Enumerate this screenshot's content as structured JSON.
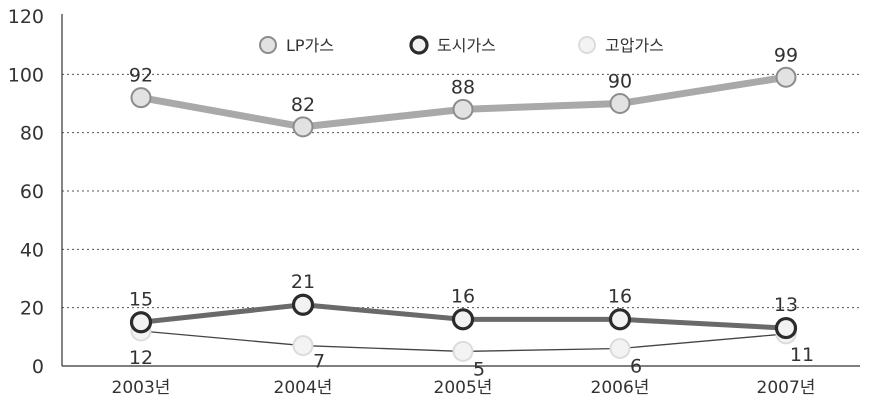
{
  "chart_data": {
    "type": "line",
    "title": "",
    "xlabel": "",
    "ylabel": "",
    "categories": [
      "2003년",
      "2004년",
      "2005년",
      "2006년",
      "2007년"
    ],
    "ylim": [
      0,
      120
    ],
    "yticks": [
      "0",
      "20",
      "40",
      "60",
      "80",
      "100",
      "120"
    ],
    "grid": "horizontal-dotted",
    "legend": "top-center",
    "series": [
      {
        "name": "LP가스",
        "values": [
          92,
          82,
          88,
          90,
          99
        ],
        "labels": [
          "92",
          "82",
          "88",
          "90",
          "99"
        ],
        "line_color": "#a9a9a9",
        "marker_fill": "#e2e2e2",
        "marker_stroke": "#8c8c8c"
      },
      {
        "name": "도시가스",
        "values": [
          15,
          21,
          16,
          16,
          13
        ],
        "labels": [
          "15",
          "21",
          "16",
          "16",
          "13"
        ],
        "line_color": "#6a6a6a",
        "marker_fill": "#f2f2f2",
        "marker_stroke": "#2b2b2b"
      },
      {
        "name": "고압가스",
        "values": [
          12,
          7,
          5,
          6,
          11
        ],
        "labels": [
          "12",
          "7",
          "5",
          "6",
          "11"
        ],
        "line_color": "#444444",
        "marker_fill": "#f3f3f3",
        "marker_stroke": "#dcdcdc"
      }
    ]
  }
}
